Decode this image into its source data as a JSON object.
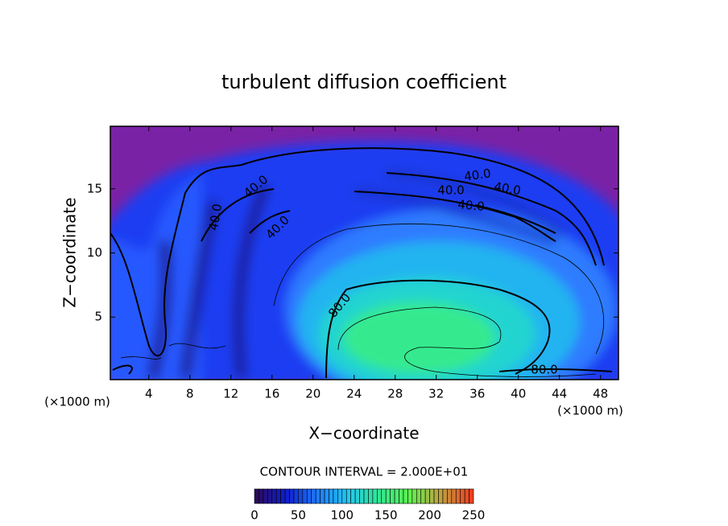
{
  "chart_data": {
    "type": "contour",
    "title": "turbulent diffusion coefficient",
    "xlabel": "X−coordinate",
    "ylabel": "Z−coordinate",
    "xunit": "(×1000 m)",
    "yunit": "(×1000 m)",
    "xlim": [
      0.25,
      49.75
    ],
    "ylim": [
      0.125,
      19.875
    ],
    "xticks": [
      4,
      8,
      12,
      16,
      20,
      24,
      28,
      32,
      36,
      40,
      44,
      48
    ],
    "yticks": [
      5,
      10,
      15
    ],
    "contour_labels": {
      "values": [
        40,
        40,
        40,
        40,
        40,
        40,
        40,
        80,
        80
      ],
      "value_labels": [
        "40.0",
        "40.0",
        "40.0",
        "40.0",
        "40.0",
        "40.0",
        "40.0",
        "80.0",
        "80.0"
      ]
    },
    "contour_interval_text": "CONTOUR INTERVAL = 2.000E+01",
    "colorbar": {
      "lim": [
        0,
        250
      ],
      "ticks": [
        0,
        50,
        100,
        150,
        200,
        250
      ],
      "colormap": [
        "#2a0a60",
        "#1020d0",
        "#1e7cff",
        "#22c8f0",
        "#30e890",
        "#60f050",
        "#c0a040",
        "#f04020"
      ]
    }
  }
}
